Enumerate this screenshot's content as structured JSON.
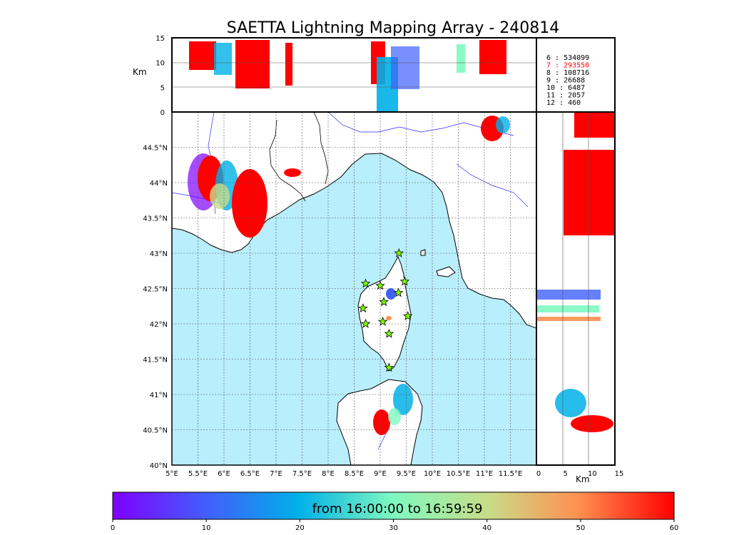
{
  "title": "SAETTA Lightning Mapping Array - 240814",
  "colors": {
    "sea": "#b9eefc",
    "land": "#ffffff",
    "border": "#000000",
    "river": "#2a2aff",
    "grid": "#555555",
    "highlight": "#ff0000"
  },
  "top_panel": {
    "ylabel": "Km",
    "yticks": [
      "15",
      "10",
      "5",
      "0"
    ]
  },
  "side_panel": {
    "xlabel": "Km",
    "xticks": [
      "0",
      "5",
      "10",
      "15"
    ]
  },
  "map": {
    "lon_ticks": [
      "5°E",
      "5.5°E",
      "6°E",
      "6.5°E",
      "7°E",
      "7.5°E",
      "8°E",
      "8.5°E",
      "9°E",
      "9.5°E",
      "10°E",
      "10.5°E",
      "11°E",
      "11.5°E"
    ],
    "lat_ticks": [
      "44.5°N",
      "44°N",
      "43.5°N",
      "43°N",
      "42.5°N",
      "42°N",
      "41.5°N",
      "41°N",
      "40.5°N",
      "40°N"
    ],
    "stations": [
      {
        "lon": 9.36,
        "lat": 43.0
      },
      {
        "lon": 8.72,
        "lat": 42.57
      },
      {
        "lon": 9.0,
        "lat": 42.54
      },
      {
        "lon": 9.47,
        "lat": 42.6
      },
      {
        "lon": 9.35,
        "lat": 42.44
      },
      {
        "lon": 9.07,
        "lat": 42.31
      },
      {
        "lon": 8.67,
        "lat": 42.22
      },
      {
        "lon": 9.53,
        "lat": 42.11
      },
      {
        "lon": 9.05,
        "lat": 42.03
      },
      {
        "lon": 8.72,
        "lat": 42.0
      },
      {
        "lon": 9.17,
        "lat": 41.86
      },
      {
        "lon": 9.17,
        "lat": 41.38
      }
    ]
  },
  "legend": [
    {
      "label": "6  :   534099",
      "highlight": false
    },
    {
      "label": "7  :   293550",
      "highlight": true
    },
    {
      "label": "8  :   108716",
      "highlight": false
    },
    {
      "label": "9  :    26688",
      "highlight": false
    },
    {
      "label": "10 :     6487",
      "highlight": false
    },
    {
      "label": "11 :     2057",
      "highlight": false
    },
    {
      "label": "12 :      460",
      "highlight": false
    }
  ],
  "colorbar": {
    "text": "from 16:00:00 to 16:59:59",
    "ticks": [
      "0",
      "10",
      "20",
      "30",
      "40",
      "50",
      "60"
    ],
    "range": [
      0,
      60
    ]
  }
}
